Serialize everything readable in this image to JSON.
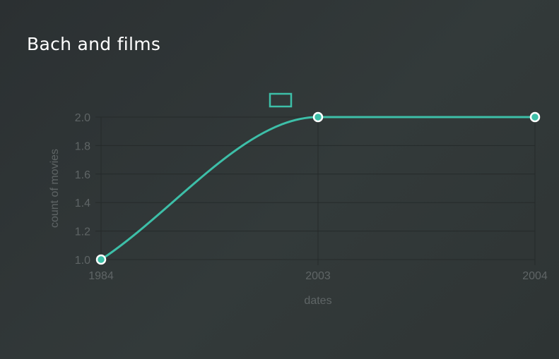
{
  "page": {
    "title": "Bach and films"
  },
  "chart_data": {
    "type": "line",
    "title": "Bach and films",
    "xlabel": "dates",
    "ylabel": "count of movies",
    "categories": [
      "1984",
      "2003",
      "2004"
    ],
    "series": [
      {
        "values": [
          1,
          2,
          2
        ]
      }
    ],
    "ylim": [
      1.0,
      2.0
    ],
    "yticks": [
      "1.0",
      "1.2",
      "1.4",
      "1.6",
      "1.8",
      "2.0"
    ],
    "grid": true,
    "legend": "top",
    "colors": {
      "line": "#3dbfa8",
      "point_stroke": "#ffffff",
      "grid": "#252a2a",
      "text": "#5f6566"
    }
  }
}
